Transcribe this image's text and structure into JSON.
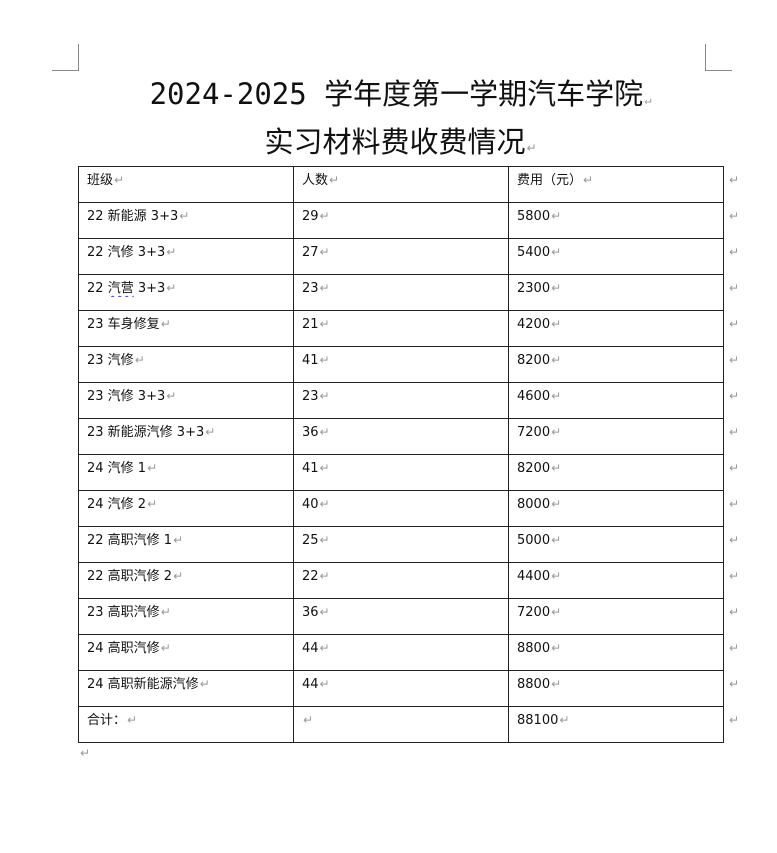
{
  "title_line1": "2024-2025 学年度第一学期汽车学院",
  "title_line2": "实习材料费收费情况",
  "paragraph_mark": "↵",
  "table": {
    "headers": [
      "班级",
      "人数",
      "费用（元）"
    ],
    "rows": [
      [
        "22 新能源 3+3",
        "29",
        "5800"
      ],
      [
        "22 汽修 3+3",
        "27",
        "5400"
      ],
      [
        "22 汽营 3+3",
        "23",
        "2300"
      ],
      [
        "23 车身修复",
        "21",
        "4200"
      ],
      [
        "23 汽修",
        "41",
        "8200"
      ],
      [
        "23 汽修 3+3",
        "23",
        "4600"
      ],
      [
        "23 新能源汽修 3+3",
        "36",
        "7200"
      ],
      [
        "24 汽修 1",
        "41",
        "8200"
      ],
      [
        "24 汽修 2",
        "40",
        "8000"
      ],
      [
        "22 高职汽修 1",
        "25",
        "5000"
      ],
      [
        "22 高职汽修 2",
        "22",
        "4400"
      ],
      [
        "23 高职汽修",
        "36",
        "7200"
      ],
      [
        "24 高职汽修",
        "44",
        "8800"
      ],
      [
        "24 高职新能源汽修",
        "44",
        "8800"
      ]
    ],
    "total": [
      "合计：",
      "",
      "88100"
    ]
  }
}
